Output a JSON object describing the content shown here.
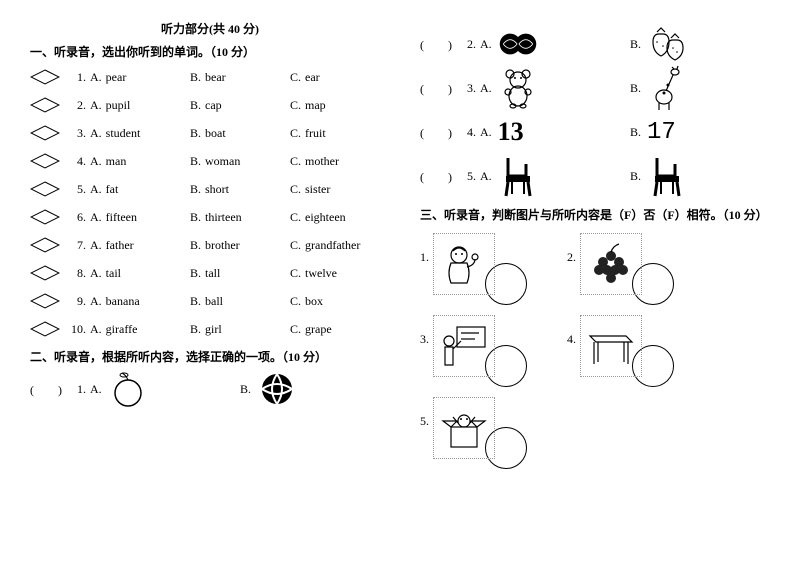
{
  "header": {
    "title": "听力部分",
    "points_suffix": "(共 40 分)"
  },
  "section1": {
    "heading": "一、听录音，选出你听到的单词。",
    "points": "（10 分）",
    "rows": [
      {
        "n": "1.",
        "a": "pear",
        "b": "bear",
        "c": "ear"
      },
      {
        "n": "2.",
        "a": "pupil",
        "b": "cap",
        "c": "map"
      },
      {
        "n": "3.",
        "a": "student",
        "b": "boat",
        "c": "fruit"
      },
      {
        "n": "4.",
        "a": "man",
        "b": "woman",
        "c": "mother"
      },
      {
        "n": "5.",
        "a": "fat",
        "b": "short",
        "c": "sister"
      },
      {
        "n": "6.",
        "a": "fifteen",
        "b": "thirteen",
        "c": "eighteen"
      },
      {
        "n": "7.",
        "a": "father",
        "b": "brother",
        "c": "grandfather"
      },
      {
        "n": "8.",
        "a": "tail",
        "b": "tall",
        "c": "twelve"
      },
      {
        "n": "9.",
        "a": "banana",
        "b": "ball",
        "c": "box"
      },
      {
        "n": "10.",
        "a": "giraffe",
        "b": "girl",
        "c": "grape"
      }
    ],
    "labels": {
      "a": "A.",
      "b": "B.",
      "c": "C."
    }
  },
  "section2": {
    "heading": "二、听录音，根据所听内容，选择正确的一项。",
    "points": "（10 分）",
    "paren": "(　　)",
    "labels": {
      "a": "A.",
      "b": "B."
    },
    "items": [
      {
        "n": "1.",
        "a_icon": "orange",
        "b_icon": "ball-pattern"
      },
      {
        "n": "2.",
        "a_icon": "watermelons",
        "b_icon": "strawberries"
      },
      {
        "n": "3.",
        "a_icon": "teddy-bear",
        "b_icon": "giraffe"
      },
      {
        "n": "4.",
        "a_text": "13",
        "b_text": "17"
      },
      {
        "n": "5.",
        "a_icon": "chair",
        "b_icon": "chair"
      }
    ]
  },
  "section3": {
    "heading": "三、听录音，判断图片与所听内容是（F）否（F）相符。",
    "points": "（10 分）",
    "items": [
      {
        "n": "1.",
        "icon": "man-thinking"
      },
      {
        "n": "2.",
        "icon": "grapes"
      },
      {
        "n": "3.",
        "icon": "teacher-board"
      },
      {
        "n": "4.",
        "icon": "desk"
      },
      {
        "n": "5.",
        "icon": "box-open"
      }
    ]
  },
  "colors": {
    "text": "#000000",
    "bg": "#ffffff",
    "dotted": "#999999"
  }
}
